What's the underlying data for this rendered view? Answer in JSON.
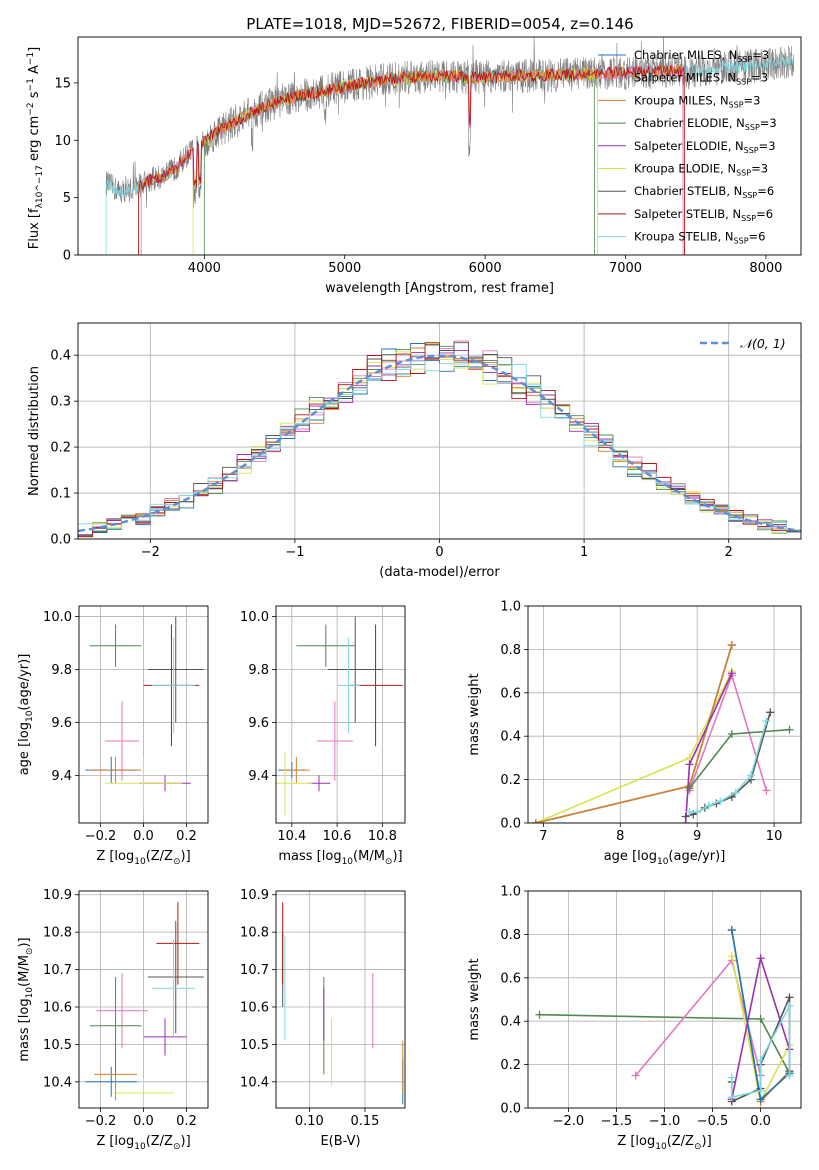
{
  "figure_title": "PLATE=1018, MJD=52672, FIBERID=0054, z=0.146",
  "colors": {
    "chabrier_miles": "#1f77b4",
    "salpeter_miles": "#e377c2",
    "kroupa_miles": "#d9802b",
    "chabrier_elodie": "#4f8a4f",
    "salpeter_elodie": "#9b30b0",
    "kroupa_elodie": "#d8e44c",
    "chabrier_stelib": "#555555",
    "salpeter_stelib": "#b01818",
    "kroupa_stelib": "#7fd8e0",
    "data": "#808080",
    "normal": "#5b8fd8"
  },
  "chart_data": [
    {
      "id": "spectrum",
      "type": "line",
      "title": "PLATE=1018, MJD=52672, FIBERID=0054, z=0.146",
      "xlabel": "wavelength [Angstrom, rest frame]",
      "ylabel": "Flux [f_λ10^-17 erg cm^-2 s^-1 A^-1]",
      "xlim": [
        3100,
        8250
      ],
      "ylim": [
        0,
        19
      ],
      "xticks": [
        4000,
        5000,
        6000,
        7000,
        8000
      ],
      "yticks": [
        0,
        5,
        10,
        15
      ],
      "legend": [
        {
          "label": "Chabrier MILES, N_SSP=3",
          "color": "chabrier_miles"
        },
        {
          "label": "Salpeter MILES, N_SSP=3",
          "color": "salpeter_miles"
        },
        {
          "label": "Kroupa MILES, N_SSP=3",
          "color": "kroupa_miles"
        },
        {
          "label": "Chabrier ELODIE, N_SSP=3",
          "color": "chabrier_elodie"
        },
        {
          "label": "Salpeter ELODIE, N_SSP=3",
          "color": "salpeter_elodie"
        },
        {
          "label": "Kroupa ELODIE, N_SSP=3",
          "color": "kroupa_elodie"
        },
        {
          "label": "Chabrier STELIB, N_SSP=6",
          "color": "chabrier_stelib"
        },
        {
          "label": "Salpeter STELIB, N_SSP=6",
          "color": "salpeter_stelib"
        },
        {
          "label": "Kroupa STELIB, N_SSP=6",
          "color": "kroupa_stelib"
        }
      ],
      "continuum": {
        "x": [
          3300,
          3400,
          3500,
          3600,
          3700,
          3800,
          3900,
          4000,
          4100,
          4200,
          4300,
          4500,
          4700,
          5000,
          5300,
          5600,
          6000,
          6500,
          7000,
          7500,
          8000,
          8200
        ],
        "y": [
          6.3,
          5.5,
          5.8,
          6.5,
          6.8,
          7.6,
          9.0,
          9.8,
          10.8,
          11.5,
          12.2,
          13.3,
          13.9,
          14.7,
          15.3,
          15.6,
          15.5,
          15.7,
          15.9,
          16.1,
          16.6,
          16.9
        ]
      },
      "data_range": [
        3300,
        8200
      ]
    },
    {
      "id": "residuals",
      "type": "line",
      "xlabel": "(data-model)/error",
      "ylabel": "Normed distribution",
      "xlim": [
        -2.5,
        2.5
      ],
      "ylim": [
        0,
        0.47
      ],
      "xticks": [
        -2,
        -1,
        0,
        1,
        2
      ],
      "yticks": [
        0.0,
        0.1,
        0.2,
        0.3,
        0.4
      ],
      "legend": [
        {
          "label": "𝒩(0, 1)",
          "color": "normal"
        }
      ],
      "bins": {
        "start": -2.5,
        "width": 0.1,
        "count": 50
      },
      "grid": true
    },
    {
      "id": "age-vs-Z",
      "type": "scatter",
      "xlabel": "Z [log10(Z/Z⊙)]",
      "ylabel": "age  [log10(age/yr)]",
      "xlim": [
        -0.3,
        0.3
      ],
      "ylim": [
        9.22,
        10.04
      ],
      "xticks": [
        -0.2,
        0.0,
        0.2
      ],
      "yticks": [
        9.4,
        9.6,
        9.8,
        10.0
      ],
      "points": [
        {
          "x": -0.15,
          "y": 9.42,
          "xerr": 0.12,
          "yerr": 0.05,
          "color": "chabrier_miles"
        },
        {
          "x": -0.1,
          "y": 9.53,
          "xerr": 0.08,
          "yerr": 0.15,
          "color": "salpeter_miles"
        },
        {
          "x": -0.13,
          "y": 9.42,
          "xerr": 0.12,
          "yerr": 0.05,
          "color": "kroupa_miles"
        },
        {
          "x": -0.13,
          "y": 9.89,
          "xerr": 0.12,
          "yerr": 0.08,
          "color": "chabrier_elodie"
        },
        {
          "x": 0.1,
          "y": 9.37,
          "xerr": 0.12,
          "yerr": 0.03,
          "color": "salpeter_elodie"
        },
        {
          "x": 0.0,
          "y": 9.37,
          "xerr": 0.18,
          "yerr": 0.1,
          "color": "kroupa_elodie"
        },
        {
          "x": 0.15,
          "y": 9.8,
          "xerr": 0.13,
          "yerr": 0.2,
          "color": "chabrier_stelib"
        },
        {
          "x": 0.13,
          "y": 9.74,
          "xerr": 0.13,
          "yerr": 0.23,
          "color": "salpeter_stelib"
        },
        {
          "x": 0.14,
          "y": 9.74,
          "xerr": 0.1,
          "yerr": 0.18,
          "color": "kroupa_stelib"
        }
      ]
    },
    {
      "id": "age-vs-mass",
      "type": "scatter",
      "xlabel": "mass [log10(M/M⊙)]",
      "ylabel": "",
      "xlim": [
        10.33,
        10.9
      ],
      "ylim": [
        9.22,
        10.04
      ],
      "xticks": [
        10.4,
        10.6,
        10.8
      ],
      "yticks": [
        9.4,
        9.6,
        9.8,
        10.0
      ],
      "points": [
        {
          "x": 10.4,
          "y": 9.42,
          "xerr": 0.06,
          "yerr": 0.03,
          "color": "chabrier_miles"
        },
        {
          "x": 10.59,
          "y": 9.53,
          "xerr": 0.08,
          "yerr": 0.15,
          "color": "salpeter_miles"
        },
        {
          "x": 10.42,
          "y": 9.42,
          "xerr": 0.06,
          "yerr": 0.05,
          "color": "kroupa_miles"
        },
        {
          "x": 10.55,
          "y": 9.89,
          "xerr": 0.13,
          "yerr": 0.08,
          "color": "chabrier_elodie"
        },
        {
          "x": 10.52,
          "y": 9.37,
          "xerr": 0.05,
          "yerr": 0.03,
          "color": "salpeter_elodie"
        },
        {
          "x": 10.37,
          "y": 9.37,
          "xerr": 0.12,
          "yerr": 0.12,
          "color": "kroupa_elodie"
        },
        {
          "x": 10.68,
          "y": 9.8,
          "xerr": 0.12,
          "yerr": 0.2,
          "color": "chabrier_stelib"
        },
        {
          "x": 10.77,
          "y": 9.74,
          "xerr": 0.12,
          "yerr": 0.23,
          "color": "salpeter_stelib"
        },
        {
          "x": 10.65,
          "y": 9.74,
          "xerr": 0.05,
          "yerr": 0.18,
          "color": "kroupa_stelib"
        }
      ]
    },
    {
      "id": "weight-vs-age",
      "type": "line",
      "xlabel": "age  [log10(age/yr)]",
      "ylabel": "mass weight",
      "xlim": [
        6.8,
        10.35
      ],
      "ylim": [
        0.0,
        1.0
      ],
      "xticks": [
        7,
        8,
        9,
        10
      ],
      "yticks": [
        0.0,
        0.2,
        0.4,
        0.6,
        0.8,
        1.0
      ],
      "series": [
        {
          "color": "kroupa_elodie",
          "x": [
            6.9,
            8.9,
            9.45
          ],
          "y": [
            0.0,
            0.3,
            0.7
          ]
        },
        {
          "color": "chabrier_miles",
          "x": [
            6.9,
            8.9,
            9.45
          ],
          "y": [
            0.0,
            0.17,
            0.82
          ]
        },
        {
          "color": "kroupa_miles",
          "x": [
            6.9,
            8.9,
            9.45
          ],
          "y": [
            0.0,
            0.17,
            0.82
          ]
        },
        {
          "color": "salpeter_miles",
          "x": [
            8.9,
            9.45,
            9.9
          ],
          "y": [
            0.15,
            0.68,
            0.15
          ]
        },
        {
          "color": "salpeter_elodie",
          "x": [
            8.85,
            8.9,
            9.45
          ],
          "y": [
            0.0,
            0.27,
            0.69
          ]
        },
        {
          "color": "chabrier_elodie",
          "x": [
            8.9,
            9.45,
            10.2
          ],
          "y": [
            0.16,
            0.41,
            0.43
          ]
        },
        {
          "color": "chabrier_stelib",
          "x": [
            8.85,
            8.95,
            9.1,
            9.25,
            9.45,
            9.7,
            9.95
          ],
          "y": [
            0.03,
            0.04,
            0.07,
            0.09,
            0.12,
            0.2,
            0.51
          ]
        },
        {
          "color": "kroupa_stelib",
          "x": [
            8.9,
            9.0,
            9.15,
            9.3,
            9.5,
            9.7,
            9.9
          ],
          "y": [
            0.05,
            0.05,
            0.08,
            0.1,
            0.14,
            0.22,
            0.47
          ]
        }
      ]
    },
    {
      "id": "mass-vs-Z",
      "type": "scatter",
      "xlabel": "Z [log10(Z/Z⊙)]",
      "ylabel": "mass [log10(M/M⊙)]",
      "xlim": [
        -0.3,
        0.3
      ],
      "ylim": [
        10.33,
        10.91
      ],
      "xticks": [
        -0.2,
        0.0,
        0.2
      ],
      "yticks": [
        10.4,
        10.5,
        10.6,
        10.7,
        10.8,
        10.9
      ],
      "points": [
        {
          "x": -0.15,
          "y": 10.4,
          "xerr": 0.12,
          "yerr": 0.04,
          "color": "chabrier_miles"
        },
        {
          "x": -0.1,
          "y": 10.59,
          "xerr": 0.12,
          "yerr": 0.1,
          "color": "salpeter_miles"
        },
        {
          "x": -0.13,
          "y": 10.42,
          "xerr": 0.1,
          "yerr": 0.07,
          "color": "kroupa_miles"
        },
        {
          "x": -0.13,
          "y": 10.55,
          "xerr": 0.12,
          "yerr": 0.13,
          "color": "chabrier_elodie"
        },
        {
          "x": 0.1,
          "y": 10.52,
          "xerr": 0.1,
          "yerr": 0.05,
          "color": "salpeter_elodie"
        },
        {
          "x": 0.0,
          "y": 10.37,
          "xerr": 0.14,
          "yerr": 0.04,
          "color": "kroupa_elodie"
        },
        {
          "x": 0.15,
          "y": 10.68,
          "xerr": 0.13,
          "yerr": 0.15,
          "color": "chabrier_stelib"
        },
        {
          "x": 0.16,
          "y": 10.77,
          "xerr": 0.1,
          "yerr": 0.11,
          "color": "salpeter_stelib"
        },
        {
          "x": 0.14,
          "y": 10.65,
          "xerr": 0.1,
          "yerr": 0.13,
          "color": "kroupa_stelib"
        }
      ]
    },
    {
      "id": "mass-vs-EBV",
      "type": "scatter",
      "xlabel": "E(B-V)",
      "ylabel": "",
      "xlim": [
        0.07,
        0.186
      ],
      "ylim": [
        10.33,
        10.91
      ],
      "xticks": [
        0.1,
        0.15
      ],
      "yticks": [
        10.4,
        10.5,
        10.6,
        10.7,
        10.8,
        10.9
      ],
      "points": [
        {
          "x": 0.184,
          "y": 10.4,
          "xerr": 0,
          "yerr": 0.06,
          "color": "chabrier_miles"
        },
        {
          "x": 0.157,
          "y": 10.59,
          "xerr": 0,
          "yerr": 0.1,
          "color": "salpeter_miles"
        },
        {
          "x": 0.184,
          "y": 10.44,
          "xerr": 0,
          "yerr": 0.07,
          "color": "kroupa_miles"
        },
        {
          "x": 0.113,
          "y": 10.55,
          "xerr": 0,
          "yerr": 0.13,
          "color": "chabrier_elodie"
        },
        {
          "x": 0.113,
          "y": 10.58,
          "xerr": 0,
          "yerr": 0.07,
          "color": "salpeter_elodie"
        },
        {
          "x": 0.12,
          "y": 10.48,
          "xerr": 0,
          "yerr": 0.09,
          "color": "kroupa_elodie"
        },
        {
          "x": 0.076,
          "y": 10.7,
          "xerr": 0,
          "yerr": 0.1,
          "color": "chabrier_stelib"
        },
        {
          "x": 0.076,
          "y": 10.77,
          "xerr": 0,
          "yerr": 0.11,
          "color": "salpeter_stelib"
        },
        {
          "x": 0.078,
          "y": 10.65,
          "xerr": 0,
          "yerr": 0.14,
          "color": "kroupa_stelib"
        }
      ]
    },
    {
      "id": "weight-vs-Z",
      "type": "line",
      "xlabel": "Z [log10(Z/Z⊙)]",
      "ylabel": "mass weight",
      "xlim": [
        -2.42,
        0.42
      ],
      "ylim": [
        0.0,
        1.0
      ],
      "xticks": [
        -2.0,
        -1.5,
        -1.0,
        -0.5,
        0.0
      ],
      "yticks": [
        0.0,
        0.2,
        0.4,
        0.6,
        0.8,
        1.0
      ],
      "series": [
        {
          "color": "chabrier_elodie",
          "x": [
            -2.3,
            0.0,
            0.3
          ],
          "y": [
            0.43,
            0.41,
            0.16
          ]
        },
        {
          "color": "salpeter_miles",
          "x": [
            -1.3,
            -0.3,
            0.0
          ],
          "y": [
            0.15,
            0.68,
            0.15
          ]
        },
        {
          "color": "kroupa_elodie",
          "x": [
            -0.3,
            0.0,
            0.3
          ],
          "y": [
            0.7,
            0.03,
            0.29
          ]
        },
        {
          "color": "kroupa_miles",
          "x": [
            -0.3,
            0.0,
            0.3
          ],
          "y": [
            0.82,
            0.03,
            0.17
          ]
        },
        {
          "color": "chabrier_miles",
          "x": [
            -0.3,
            0.0,
            0.3
          ],
          "y": [
            0.82,
            0.04,
            0.16
          ]
        },
        {
          "color": "salpeter_elodie",
          "x": [
            -0.3,
            0.0,
            0.3
          ],
          "y": [
            0.04,
            0.69,
            0.27
          ]
        },
        {
          "color": "chabrier_stelib",
          "x": [
            -0.3,
            -0.3,
            0.0,
            0.0,
            0.3,
            0.3
          ],
          "y": [
            0.12,
            0.03,
            0.09,
            0.2,
            0.51,
            0.17
          ]
        },
        {
          "color": "kroupa_stelib",
          "x": [
            -0.3,
            -0.3,
            0.0,
            0.0,
            0.3,
            0.3
          ],
          "y": [
            0.14,
            0.05,
            0.08,
            0.22,
            0.47,
            0.15
          ]
        }
      ]
    }
  ]
}
